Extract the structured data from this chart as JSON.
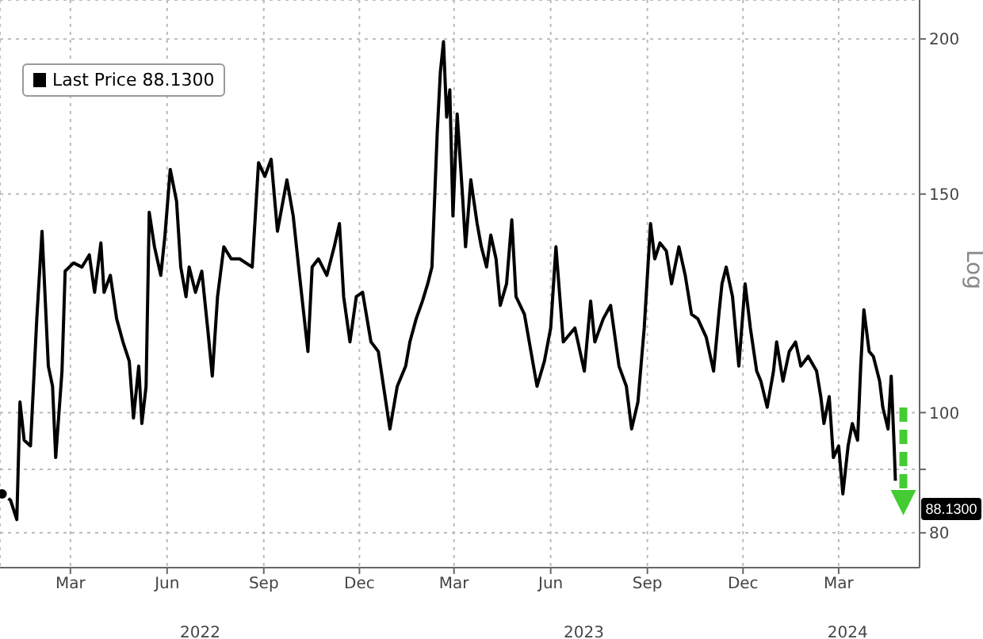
{
  "chart_data": {
    "type": "line",
    "ylabel": "Log",
    "legend": "top left",
    "grid": true,
    "log": "y",
    "marker": "none",
    "line_style": "solid",
    "xlim": [
      "2021-12-24",
      "2024-05-17"
    ],
    "ylim": [
      75,
      215
    ],
    "yticks": [
      80,
      {
        "value": 90,
        "label": null
      },
      100,
      150,
      200
    ],
    "xticks": [
      {
        "value": "2022-03-01",
        "label": "Mar"
      },
      {
        "value": "2022-06-01",
        "label": "Jun"
      },
      {
        "value": "2022-09-01",
        "label": "Sep"
      },
      {
        "value": "2022-12-01",
        "label": "Dec"
      },
      {
        "value": "2023-03-01",
        "label": "Mar"
      },
      {
        "value": "2023-06-01",
        "label": "Jun"
      },
      {
        "value": "2023-09-01",
        "label": "Sep"
      },
      {
        "value": "2023-12-01",
        "label": "Dec"
      },
      {
        "value": "2024-03-01",
        "label": "Mar"
      }
    ],
    "annotations": [
      "2022",
      "2023",
      "2024",
      {
        "text": "88.1300",
        "x": "2024-04-24",
        "y": 88.13
      }
    ],
    "series": [
      {
        "name": "Last Price 88.1300",
        "color": "#000000",
        "x": [
          "2021-12-26",
          "2022-01-03",
          "2022-01-09",
          "2022-01-12",
          "2022-01-16",
          "2022-01-22",
          "2022-01-28",
          "2022-02-02",
          "2022-02-08",
          "2022-02-12",
          "2022-02-15",
          "2022-02-21",
          "2022-02-24",
          "2022-03-04",
          "2022-03-12",
          "2022-03-19",
          "2022-03-24",
          "2022-03-30",
          "2022-04-02",
          "2022-04-08",
          "2022-04-14",
          "2022-04-20",
          "2022-04-26",
          "2022-04-30",
          "2022-05-05",
          "2022-05-08",
          "2022-05-12",
          "2022-05-15",
          "2022-05-20",
          "2022-05-26",
          "2022-05-30",
          "2022-06-04",
          "2022-06-10",
          "2022-06-14",
          "2022-06-19",
          "2022-06-22",
          "2022-06-28",
          "2022-07-04",
          "2022-07-10",
          "2022-07-14",
          "2022-07-19",
          "2022-07-25",
          "2022-08-01",
          "2022-08-09",
          "2022-08-21",
          "2022-08-27",
          "2022-09-02",
          "2022-09-08",
          "2022-09-14",
          "2022-09-23",
          "2022-09-29",
          "2022-10-05",
          "2022-10-13",
          "2022-10-17",
          "2022-10-23",
          "2022-10-31",
          "2022-11-07",
          "2022-11-12",
          "2022-11-16",
          "2022-11-22",
          "2022-11-28",
          "2022-12-04",
          "2022-12-12",
          "2022-12-19",
          "2022-12-30",
          "2023-01-06",
          "2023-01-14",
          "2023-01-18",
          "2023-01-24",
          "2023-01-30",
          "2023-02-04",
          "2023-02-08",
          "2023-02-13",
          "2023-02-16",
          "2023-02-19",
          "2023-02-22",
          "2023-02-25",
          "2023-02-28",
          "2023-03-04",
          "2023-03-09",
          "2023-03-12",
          "2023-03-17",
          "2023-03-23",
          "2023-03-27",
          "2023-04-01",
          "2023-04-05",
          "2023-04-10",
          "2023-04-14",
          "2023-04-20",
          "2023-04-25",
          "2023-04-29",
          "2023-05-07",
          "2023-05-19",
          "2023-05-26",
          "2023-06-01",
          "2023-06-06",
          "2023-06-13",
          "2023-06-24",
          "2023-07-03",
          "2023-07-09",
          "2023-07-13",
          "2023-07-21",
          "2023-07-28",
          "2023-08-05",
          "2023-08-12",
          "2023-08-17",
          "2023-08-23",
          "2023-08-29",
          "2023-09-04",
          "2023-09-08",
          "2023-09-13",
          "2023-09-19",
          "2023-09-24",
          "2023-10-01",
          "2023-10-07",
          "2023-10-13",
          "2023-10-19",
          "2023-10-27",
          "2023-11-03",
          "2023-11-08",
          "2023-11-11",
          "2023-11-15",
          "2023-11-21",
          "2023-11-27",
          "2023-12-03",
          "2023-12-08",
          "2023-12-14",
          "2023-12-18",
          "2023-12-24",
          "2023-12-30",
          "2024-01-02",
          "2024-01-08",
          "2024-01-14",
          "2024-01-20",
          "2024-01-25",
          "2024-02-01",
          "2024-02-09",
          "2024-02-13",
          "2024-02-16",
          "2024-02-21",
          "2024-02-25",
          "2024-03-01",
          "2024-03-05",
          "2024-03-10",
          "2024-03-14",
          "2024-03-19",
          "2024-03-22",
          "2024-03-25",
          "2024-03-30",
          "2024-04-03",
          "2024-04-09",
          "2024-04-12",
          "2024-04-17",
          "2024-04-20",
          "2024-04-23",
          "2024-04-24"
        ],
        "values": [
          86,
          85,
          82,
          102,
          95,
          94,
          119,
          140,
          109,
          105,
          92,
          108,
          130,
          132,
          131,
          134,
          125,
          137,
          125,
          129,
          119,
          114,
          110,
          99,
          109,
          98,
          105,
          145,
          136,
          129,
          139,
          157,
          148,
          131,
          124,
          131,
          125,
          130,
          116,
          107,
          124,
          136,
          133,
          133,
          131,
          159,
          155,
          160,
          140,
          154,
          144,
          129,
          112,
          131,
          133,
          129,
          136,
          142,
          124,
          114,
          124,
          125,
          114,
          112,
          97,
          105,
          109,
          114,
          119,
          123,
          127,
          131,
          168,
          188,
          199,
          173,
          182,
          144,
          174,
          150,
          136,
          154,
          142,
          136,
          131,
          139,
          133,
          122,
          127,
          143,
          124,
          120,
          105,
          110,
          117,
          136,
          114,
          117,
          108,
          123,
          114,
          119,
          122,
          109,
          105,
          97,
          102,
          117,
          142,
          133,
          137,
          135,
          127,
          136,
          129,
          120,
          119,
          115,
          108,
          120,
          127,
          131,
          124,
          109,
          127,
          117,
          108,
          106,
          101,
          108,
          114,
          106,
          112,
          114,
          109,
          111,
          108,
          103,
          98,
          103,
          92,
          94,
          86,
          94,
          98,
          95,
          109,
          121,
          112,
          111,
          106,
          101,
          97,
          107,
          93,
          88.13
        ]
      }
    ]
  }
}
